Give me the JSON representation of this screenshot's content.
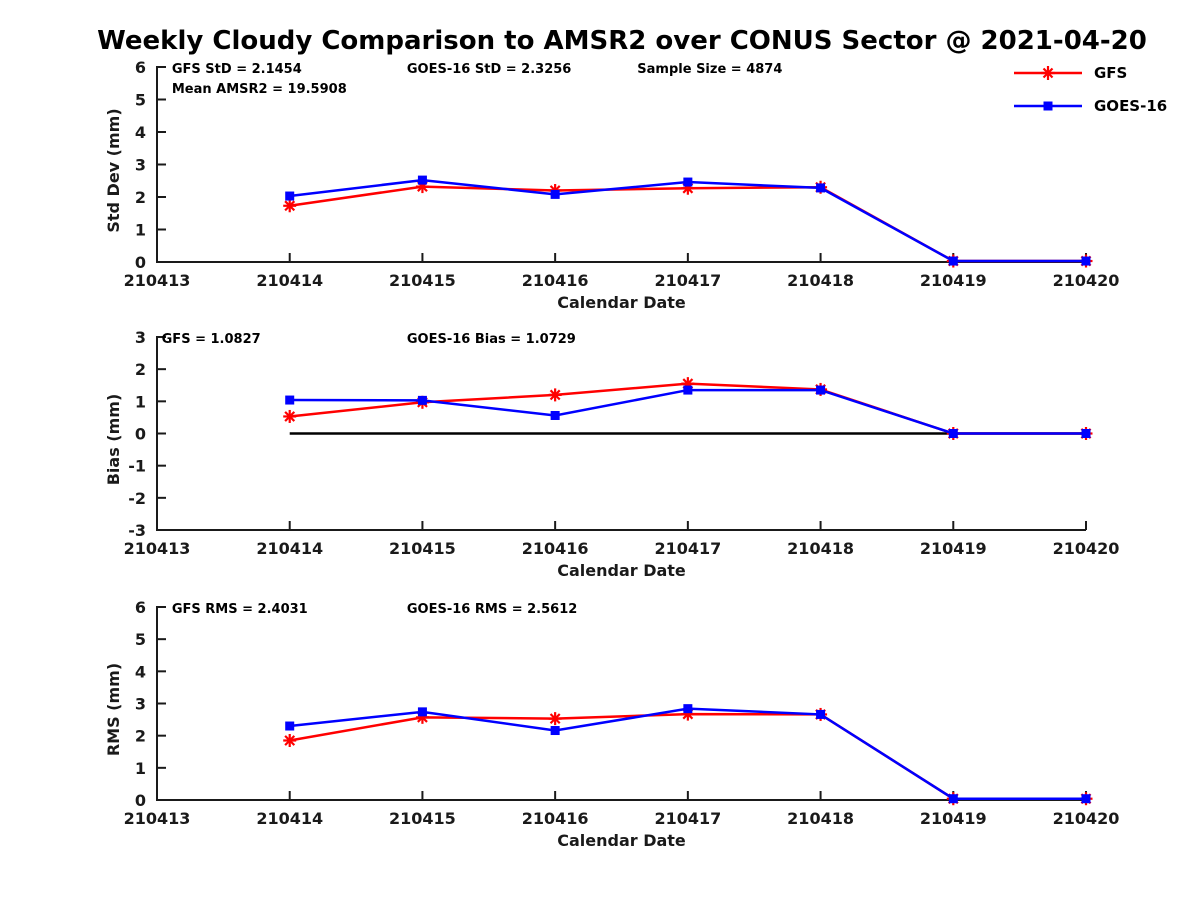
{
  "title": "Weekly Cloudy Comparison to AMSR2 over CONUS Sector @ 2021-04-20",
  "axis_color": "#1a1a1a",
  "zero_line_color": "#000000",
  "legend": {
    "items": [
      {
        "label": "GFS",
        "color": "#ff0000",
        "marker": "asterisk"
      },
      {
        "label": "GOES-16",
        "color": "#0000ff",
        "marker": "square"
      }
    ]
  },
  "chart_data": [
    {
      "type": "line",
      "title": "",
      "xlabel": "Calendar Date",
      "ylabel": "Std Dev (mm)",
      "ylim": [
        0,
        6
      ],
      "ytick_step": 1,
      "grid": false,
      "categories": [
        "210413",
        "210414",
        "210415",
        "210416",
        "210417",
        "210418",
        "210419",
        "210420"
      ],
      "x": [
        "210414",
        "210415",
        "210416",
        "210417",
        "210418",
        "210419",
        "210420"
      ],
      "annotations": [
        {
          "text": "GFS StD = 2.1454",
          "x": 0.016,
          "row": 0
        },
        {
          "text": "Mean AMSR2 = 19.5908",
          "x": 0.016,
          "row": 1
        },
        {
          "text": "GOES-16 StD = 2.3256",
          "x": 0.269,
          "row": 0
        },
        {
          "text": "Sample Size = 4874",
          "x": 0.517,
          "row": 0
        }
      ],
      "zero_line": false,
      "series": [
        {
          "name": "GFS",
          "color": "#ff0000",
          "marker": "asterisk",
          "values": [
            1.73,
            2.32,
            2.2,
            2.27,
            2.3,
            0.03,
            0.03
          ]
        },
        {
          "name": "GOES-16",
          "color": "#0000ff",
          "marker": "square",
          "values": [
            2.03,
            2.52,
            2.08,
            2.46,
            2.28,
            0.03,
            0.03
          ]
        }
      ]
    },
    {
      "type": "line",
      "title": "",
      "xlabel": "Calendar Date",
      "ylabel": "Bias (mm)",
      "ylim": [
        -3,
        3
      ],
      "ytick_step": 1,
      "grid": false,
      "categories": [
        "210413",
        "210414",
        "210415",
        "210416",
        "210417",
        "210418",
        "210419",
        "210420"
      ],
      "x": [
        "210414",
        "210415",
        "210416",
        "210417",
        "210418",
        "210419",
        "210420"
      ],
      "annotations": [
        {
          "text": "GFS = 1.0827",
          "x": 0.005,
          "row": 0
        },
        {
          "text": "GOES-16 Bias = 1.0729",
          "x": 0.269,
          "row": 0
        }
      ],
      "zero_line": true,
      "series": [
        {
          "name": "GFS",
          "color": "#ff0000",
          "marker": "asterisk",
          "values": [
            0.53,
            0.97,
            1.2,
            1.55,
            1.37,
            0.0,
            0.0
          ]
        },
        {
          "name": "GOES-16",
          "color": "#0000ff",
          "marker": "square",
          "values": [
            1.04,
            1.03,
            0.56,
            1.35,
            1.35,
            0.0,
            0.0
          ]
        }
      ]
    },
    {
      "type": "line",
      "title": "",
      "xlabel": "Calendar Date",
      "ylabel": "RMS (mm)",
      "ylim": [
        0,
        6
      ],
      "ytick_step": 1,
      "grid": false,
      "categories": [
        "210413",
        "210414",
        "210415",
        "210416",
        "210417",
        "210418",
        "210419",
        "210420"
      ],
      "x": [
        "210414",
        "210415",
        "210416",
        "210417",
        "210418",
        "210419",
        "210420"
      ],
      "annotations": [
        {
          "text": "GFS RMS = 2.4031",
          "x": 0.016,
          "row": 0
        },
        {
          "text": "GOES-16 RMS = 2.5612",
          "x": 0.269,
          "row": 0
        }
      ],
      "zero_line": false,
      "series": [
        {
          "name": "GFS",
          "color": "#ff0000",
          "marker": "asterisk",
          "values": [
            1.85,
            2.57,
            2.53,
            2.67,
            2.66,
            0.04,
            0.04
          ]
        },
        {
          "name": "GOES-16",
          "color": "#0000ff",
          "marker": "square",
          "values": [
            2.3,
            2.74,
            2.16,
            2.84,
            2.66,
            0.04,
            0.04
          ]
        }
      ]
    }
  ]
}
